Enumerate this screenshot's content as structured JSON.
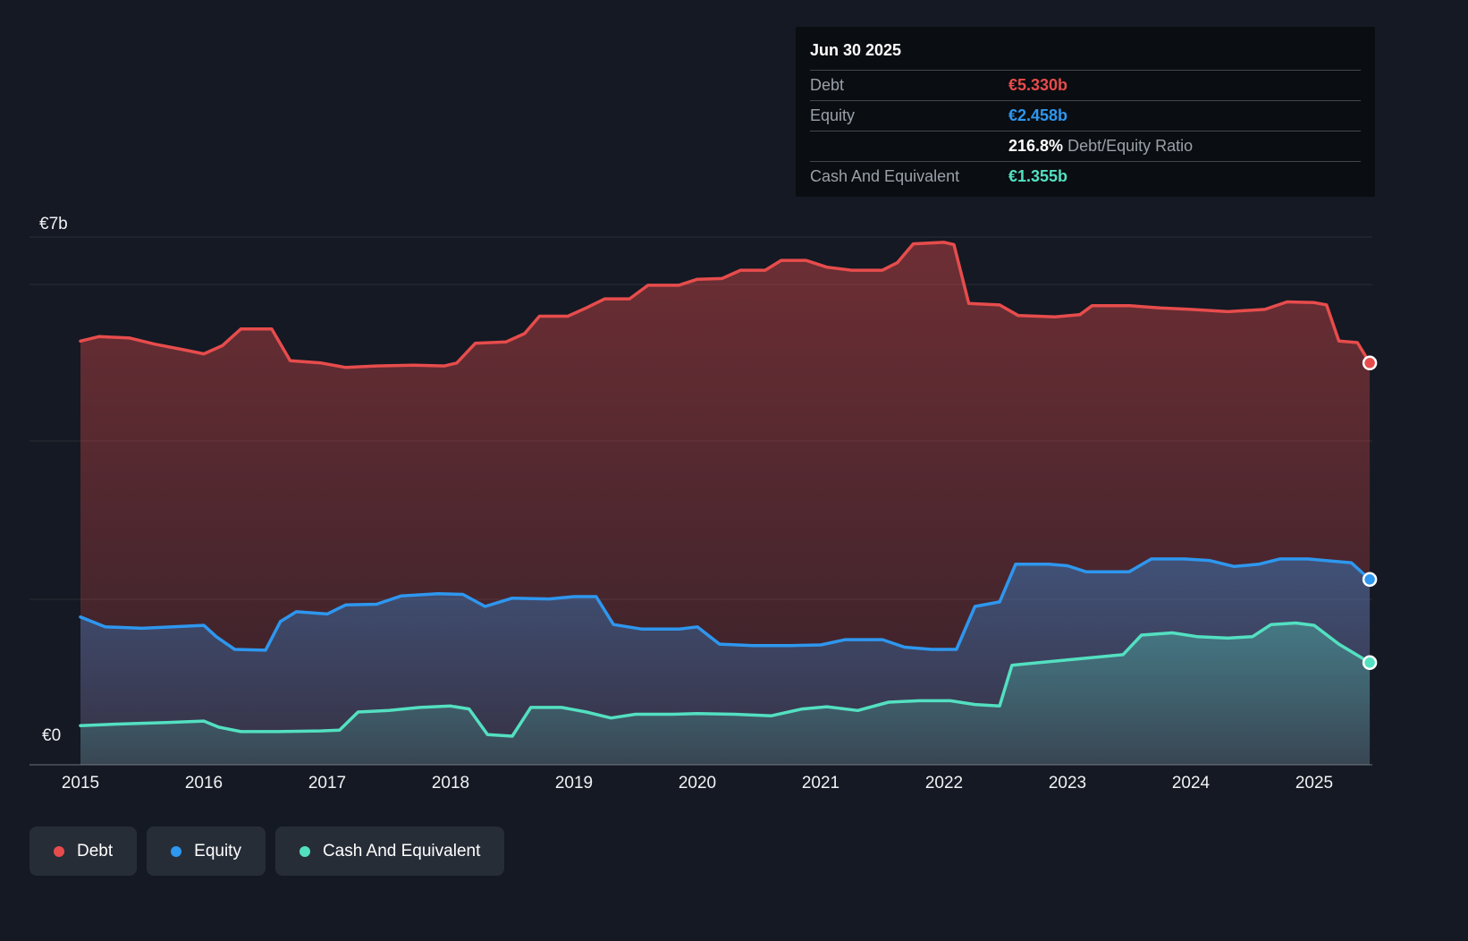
{
  "colors": {
    "debt": "#e74c4c",
    "equity": "#2e97ef",
    "cash": "#53e0c1",
    "background": "#141923"
  },
  "y_axis": {
    "top_label": "€7b",
    "bottom_label": "€0"
  },
  "tooltip": {
    "title": "Jun 30 2025",
    "debt_label": "Debt",
    "debt_value": "€5.330b",
    "equity_label": "Equity",
    "equity_value": "€2.458b",
    "ratio_value": "216.8%",
    "ratio_label": "Debt/Equity Ratio",
    "cash_label": "Cash And Equivalent",
    "cash_value": "€1.355b"
  },
  "legend": {
    "items": [
      {
        "key": "debt",
        "label": "Debt"
      },
      {
        "key": "equity",
        "label": "Equity"
      },
      {
        "key": "cash",
        "label": "Cash And Equivalent"
      }
    ]
  },
  "chart_data": {
    "type": "area",
    "currency": "EUR",
    "unit": "billions",
    "xlim": [
      2015,
      2025.5
    ],
    "ylim": [
      0,
      7
    ],
    "x_ticks": [
      2015,
      2016,
      2017,
      2018,
      2019,
      2020,
      2021,
      2022,
      2023,
      2024,
      2025
    ],
    "current_values": {
      "date": "Jun 30 2025",
      "debt_b": 5.33,
      "equity_b": 2.458,
      "cash_b": 1.355,
      "debt_equity_ratio_pct": 216.8
    },
    "series": [
      {
        "key": "debt",
        "name": "Debt",
        "points": [
          [
            2015.0,
            5.62
          ],
          [
            2015.15,
            5.68
          ],
          [
            2015.4,
            5.66
          ],
          [
            2015.6,
            5.58
          ],
          [
            2015.85,
            5.5
          ],
          [
            2016.0,
            5.45
          ],
          [
            2016.15,
            5.56
          ],
          [
            2016.3,
            5.78
          ],
          [
            2016.55,
            5.78
          ],
          [
            2016.7,
            5.36
          ],
          [
            2016.95,
            5.33
          ],
          [
            2017.15,
            5.27
          ],
          [
            2017.4,
            5.29
          ],
          [
            2017.7,
            5.3
          ],
          [
            2017.95,
            5.29
          ],
          [
            2018.05,
            5.33
          ],
          [
            2018.2,
            5.59
          ],
          [
            2018.45,
            5.61
          ],
          [
            2018.6,
            5.72
          ],
          [
            2018.72,
            5.95
          ],
          [
            2018.95,
            5.95
          ],
          [
            2019.1,
            6.06
          ],
          [
            2019.25,
            6.18
          ],
          [
            2019.45,
            6.18
          ],
          [
            2019.6,
            6.36
          ],
          [
            2019.85,
            6.36
          ],
          [
            2020.0,
            6.44
          ],
          [
            2020.2,
            6.45
          ],
          [
            2020.35,
            6.56
          ],
          [
            2020.55,
            6.56
          ],
          [
            2020.68,
            6.69
          ],
          [
            2020.88,
            6.69
          ],
          [
            2021.05,
            6.6
          ],
          [
            2021.25,
            6.56
          ],
          [
            2021.5,
            6.56
          ],
          [
            2021.62,
            6.66
          ],
          [
            2021.75,
            6.91
          ],
          [
            2022.0,
            6.93
          ],
          [
            2022.08,
            6.9
          ],
          [
            2022.2,
            6.12
          ],
          [
            2022.45,
            6.1
          ],
          [
            2022.6,
            5.96
          ],
          [
            2022.9,
            5.94
          ],
          [
            2023.1,
            5.97
          ],
          [
            2023.2,
            6.09
          ],
          [
            2023.5,
            6.09
          ],
          [
            2023.75,
            6.06
          ],
          [
            2024.0,
            6.04
          ],
          [
            2024.3,
            6.01
          ],
          [
            2024.6,
            6.04
          ],
          [
            2024.78,
            6.14
          ],
          [
            2025.0,
            6.13
          ],
          [
            2025.1,
            6.1
          ],
          [
            2025.2,
            5.62
          ],
          [
            2025.35,
            5.6
          ],
          [
            2025.45,
            5.33
          ]
        ]
      },
      {
        "key": "equity",
        "name": "Equity",
        "points": [
          [
            2015.0,
            1.96
          ],
          [
            2015.2,
            1.83
          ],
          [
            2015.5,
            1.81
          ],
          [
            2015.75,
            1.83
          ],
          [
            2016.0,
            1.85
          ],
          [
            2016.1,
            1.7
          ],
          [
            2016.25,
            1.53
          ],
          [
            2016.5,
            1.52
          ],
          [
            2016.62,
            1.9
          ],
          [
            2016.75,
            2.03
          ],
          [
            2017.0,
            2.0
          ],
          [
            2017.15,
            2.12
          ],
          [
            2017.4,
            2.13
          ],
          [
            2017.6,
            2.24
          ],
          [
            2017.9,
            2.27
          ],
          [
            2018.1,
            2.26
          ],
          [
            2018.28,
            2.1
          ],
          [
            2018.5,
            2.21
          ],
          [
            2018.8,
            2.2
          ],
          [
            2019.0,
            2.23
          ],
          [
            2019.18,
            2.23
          ],
          [
            2019.32,
            1.86
          ],
          [
            2019.55,
            1.8
          ],
          [
            2019.85,
            1.8
          ],
          [
            2020.0,
            1.83
          ],
          [
            2020.18,
            1.6
          ],
          [
            2020.45,
            1.58
          ],
          [
            2020.75,
            1.58
          ],
          [
            2021.0,
            1.59
          ],
          [
            2021.2,
            1.66
          ],
          [
            2021.5,
            1.66
          ],
          [
            2021.68,
            1.56
          ],
          [
            2021.9,
            1.53
          ],
          [
            2022.1,
            1.53
          ],
          [
            2022.25,
            2.1
          ],
          [
            2022.45,
            2.16
          ],
          [
            2022.58,
            2.66
          ],
          [
            2022.85,
            2.66
          ],
          [
            2023.0,
            2.64
          ],
          [
            2023.15,
            2.56
          ],
          [
            2023.5,
            2.56
          ],
          [
            2023.68,
            2.73
          ],
          [
            2023.95,
            2.73
          ],
          [
            2024.15,
            2.71
          ],
          [
            2024.35,
            2.63
          ],
          [
            2024.55,
            2.66
          ],
          [
            2024.72,
            2.73
          ],
          [
            2024.95,
            2.73
          ],
          [
            2025.15,
            2.7
          ],
          [
            2025.3,
            2.68
          ],
          [
            2025.45,
            2.458
          ]
        ]
      },
      {
        "key": "cash",
        "name": "Cash And Equivalent",
        "points": [
          [
            2015.0,
            0.52
          ],
          [
            2015.3,
            0.54
          ],
          [
            2015.7,
            0.56
          ],
          [
            2016.0,
            0.58
          ],
          [
            2016.12,
            0.5
          ],
          [
            2016.3,
            0.44
          ],
          [
            2016.6,
            0.44
          ],
          [
            2016.95,
            0.45
          ],
          [
            2017.1,
            0.46
          ],
          [
            2017.25,
            0.7
          ],
          [
            2017.5,
            0.72
          ],
          [
            2017.75,
            0.76
          ],
          [
            2018.0,
            0.78
          ],
          [
            2018.15,
            0.74
          ],
          [
            2018.3,
            0.4
          ],
          [
            2018.5,
            0.38
          ],
          [
            2018.65,
            0.76
          ],
          [
            2018.9,
            0.76
          ],
          [
            2019.1,
            0.7
          ],
          [
            2019.3,
            0.62
          ],
          [
            2019.5,
            0.67
          ],
          [
            2019.8,
            0.67
          ],
          [
            2020.0,
            0.68
          ],
          [
            2020.3,
            0.67
          ],
          [
            2020.6,
            0.65
          ],
          [
            2020.85,
            0.74
          ],
          [
            2021.05,
            0.77
          ],
          [
            2021.3,
            0.72
          ],
          [
            2021.55,
            0.83
          ],
          [
            2021.8,
            0.85
          ],
          [
            2022.05,
            0.85
          ],
          [
            2022.25,
            0.8
          ],
          [
            2022.45,
            0.78
          ],
          [
            2022.55,
            1.32
          ],
          [
            2022.8,
            1.36
          ],
          [
            2023.0,
            1.39
          ],
          [
            2023.25,
            1.43
          ],
          [
            2023.45,
            1.46
          ],
          [
            2023.6,
            1.72
          ],
          [
            2023.85,
            1.75
          ],
          [
            2024.05,
            1.7
          ],
          [
            2024.3,
            1.68
          ],
          [
            2024.5,
            1.7
          ],
          [
            2024.65,
            1.86
          ],
          [
            2024.85,
            1.88
          ],
          [
            2025.0,
            1.85
          ],
          [
            2025.2,
            1.6
          ],
          [
            2025.45,
            1.355
          ]
        ]
      }
    ]
  }
}
